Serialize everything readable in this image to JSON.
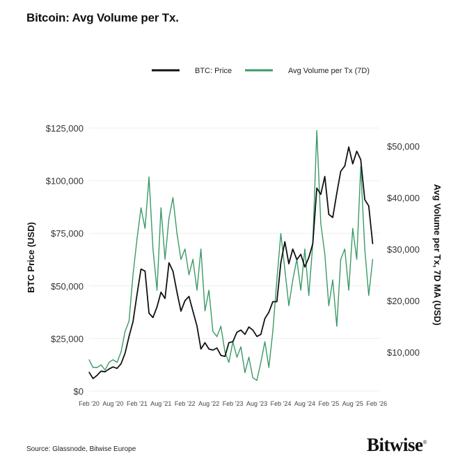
{
  "title": "Bitcoin: Avg Volume per Tx.",
  "source": "Source: Glassnode, Bitwise Europe",
  "logo": "Bitwise",
  "chart_data": {
    "type": "line",
    "title": "Bitcoin: Avg Volume per Tx.",
    "xlabel": "",
    "ylabel_left": "BTC Price (USD)",
    "ylabel_right": "Avg Volume per Tx, 7D MA (USD)",
    "legend_position": "top-center",
    "grid": true,
    "x_ticks": [
      "Feb '20",
      "Aug '20",
      "Feb '21",
      "Aug '21",
      "Feb '22",
      "Aug '22",
      "Feb '23",
      "Aug '23",
      "Feb '24",
      "Aug '24",
      "Feb '25",
      "Aug '25",
      "Feb '26"
    ],
    "y_left_ticks": [
      "$0",
      "$25,000",
      "$50,000",
      "$75,000",
      "$100,000",
      "$125,000"
    ],
    "y_left_lim": [
      0,
      125000
    ],
    "y_right_ticks": [
      "$10,000",
      "$20,000",
      "$30,000",
      "$40,000",
      "$50,000"
    ],
    "y_right_lim": [
      2400,
      53500
    ],
    "x": [
      "2020-02",
      "2020-03",
      "2020-04",
      "2020-05",
      "2020-06",
      "2020-07",
      "2020-08",
      "2020-09",
      "2020-10",
      "2020-11",
      "2020-12",
      "2021-01",
      "2021-02",
      "2021-03",
      "2021-04",
      "2021-05",
      "2021-06",
      "2021-07",
      "2021-08",
      "2021-09",
      "2021-10",
      "2021-11",
      "2021-12",
      "2022-01",
      "2022-02",
      "2022-03",
      "2022-04",
      "2022-05",
      "2022-06",
      "2022-07",
      "2022-08",
      "2022-09",
      "2022-10",
      "2022-11",
      "2022-12",
      "2023-01",
      "2023-02",
      "2023-03",
      "2023-04",
      "2023-05",
      "2023-06",
      "2023-07",
      "2023-08",
      "2023-09",
      "2023-10",
      "2023-11",
      "2023-12",
      "2024-01",
      "2024-02",
      "2024-03",
      "2024-04",
      "2024-05",
      "2024-06",
      "2024-07",
      "2024-08",
      "2024-09",
      "2024-10",
      "2024-11",
      "2024-12",
      "2025-01",
      "2025-02",
      "2025-03",
      "2025-04",
      "2025-05",
      "2025-06",
      "2025-07",
      "2025-08",
      "2025-09",
      "2025-10",
      "2025-11",
      "2025-12",
      "2026-01"
    ],
    "series": [
      {
        "name": "BTC: Price",
        "axis": "left",
        "color": "#111111",
        "values": [
          9000,
          6000,
          7500,
          9500,
          9200,
          10500,
          11500,
          10800,
          13000,
          18000,
          26000,
          33000,
          46000,
          58000,
          57000,
          37000,
          35000,
          40000,
          47000,
          44000,
          61000,
          57000,
          47000,
          38000,
          43000,
          45000,
          38000,
          31000,
          20000,
          23000,
          20000,
          19500,
          20500,
          17000,
          16500,
          23000,
          23500,
          28000,
          29000,
          27000,
          30500,
          29000,
          26000,
          27000,
          34500,
          37500,
          42500,
          42500,
          61000,
          71000,
          60500,
          67500,
          62500,
          65000,
          59000,
          63500,
          70000,
          96500,
          93500,
          102000,
          84000,
          82500,
          94000,
          104500,
          107000,
          116000,
          108000,
          114000,
          110000,
          91000,
          88000,
          70000
        ]
      },
      {
        "name": "Avg Volume per Tx (7D)",
        "axis": "right",
        "color": "#3a9a66",
        "values": [
          8500,
          7000,
          7000,
          7500,
          6500,
          8000,
          8500,
          8000,
          10000,
          14000,
          16000,
          25000,
          32000,
          38000,
          34000,
          44000,
          30000,
          22000,
          38000,
          28000,
          36000,
          40000,
          33000,
          28000,
          30000,
          25000,
          28000,
          22000,
          30000,
          18000,
          22000,
          14000,
          13000,
          15000,
          10000,
          8000,
          12000,
          9000,
          11000,
          6000,
          9000,
          5000,
          4500,
          8000,
          12000,
          7000,
          14000,
          24000,
          33000,
          26000,
          19000,
          24000,
          28000,
          22000,
          30000,
          21000,
          31000,
          53000,
          35000,
          29000,
          19000,
          24000,
          15000,
          28000,
          30000,
          22000,
          34000,
          28000,
          46000,
          30000,
          21000,
          28000
        ]
      }
    ]
  }
}
